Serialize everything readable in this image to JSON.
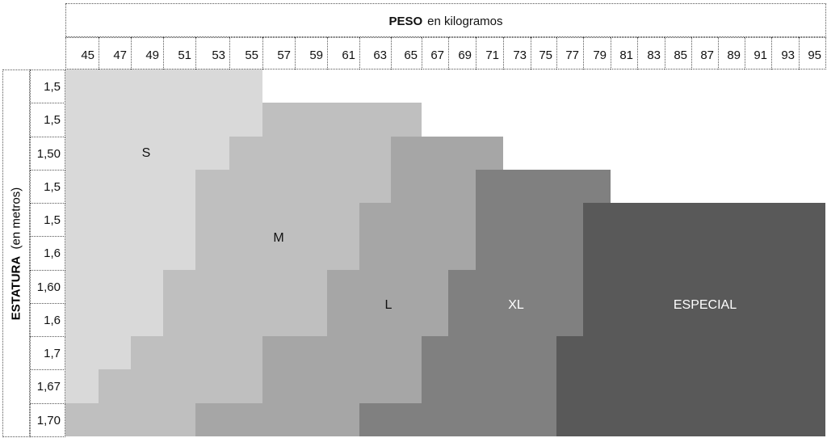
{
  "chart_data": {
    "type": "table",
    "title": "PESO",
    "title_suffix": "en kilogramos",
    "ylabel": "ESTATURA",
    "ylabel_suffix": "(en metros)",
    "weights": [
      45,
      47,
      49,
      51,
      53,
      55,
      57,
      59,
      61,
      63,
      65,
      67,
      69,
      71,
      73,
      75,
      77,
      79,
      81,
      83,
      85,
      87,
      89,
      91,
      93,
      95
    ],
    "heights": [
      "1,5",
      "1,5",
      "1,50",
      "1,5",
      "1,5",
      "1,6",
      "1,60",
      "1,6",
      "1,7",
      "1,67",
      "1,70"
    ],
    "sizes": {
      "S": "#d9d9d9",
      "M": "#bfbfbf",
      "L": "#a6a6a6",
      "XL": "#808080",
      "ESPECIAL": "#595959"
    },
    "size_labels": [
      "S",
      "M",
      "L",
      "XL",
      "ESPECIAL"
    ],
    "rows": [
      [
        [
          "S",
          55
        ]
      ],
      [
        [
          "S",
          55
        ],
        [
          "M",
          65
        ]
      ],
      [
        [
          "S",
          53
        ],
        [
          "M",
          63
        ],
        [
          "L",
          71
        ]
      ],
      [
        [
          "S",
          51
        ],
        [
          "M",
          63
        ],
        [
          "L",
          69
        ],
        [
          "XL",
          79
        ]
      ],
      [
        [
          "S",
          51
        ],
        [
          "M",
          61
        ],
        [
          "L",
          69
        ],
        [
          "XL",
          77
        ],
        [
          "ESPECIAL",
          95
        ]
      ],
      [
        [
          "S",
          51
        ],
        [
          "M",
          61
        ],
        [
          "L",
          69
        ],
        [
          "XL",
          77
        ],
        [
          "ESPECIAL",
          95
        ]
      ],
      [
        [
          "S",
          49
        ],
        [
          "M",
          59
        ],
        [
          "L",
          67
        ],
        [
          "XL",
          77
        ],
        [
          "ESPECIAL",
          95
        ]
      ],
      [
        [
          "S",
          49
        ],
        [
          "M",
          59
        ],
        [
          "L",
          67
        ],
        [
          "XL",
          77
        ],
        [
          "ESPECIAL",
          95
        ]
      ],
      [
        [
          "S",
          47
        ],
        [
          "M",
          55
        ],
        [
          "L",
          65
        ],
        [
          "XL",
          75
        ],
        [
          "ESPECIAL",
          95
        ]
      ],
      [
        [
          "S",
          45
        ],
        [
          "M",
          55
        ],
        [
          "L",
          65
        ],
        [
          "XL",
          75
        ],
        [
          "ESPECIAL",
          95
        ]
      ],
      [
        [
          "M",
          51
        ],
        [
          "L",
          61
        ],
        [
          "XL",
          75
        ],
        [
          "ESPECIAL",
          95
        ]
      ]
    ]
  }
}
